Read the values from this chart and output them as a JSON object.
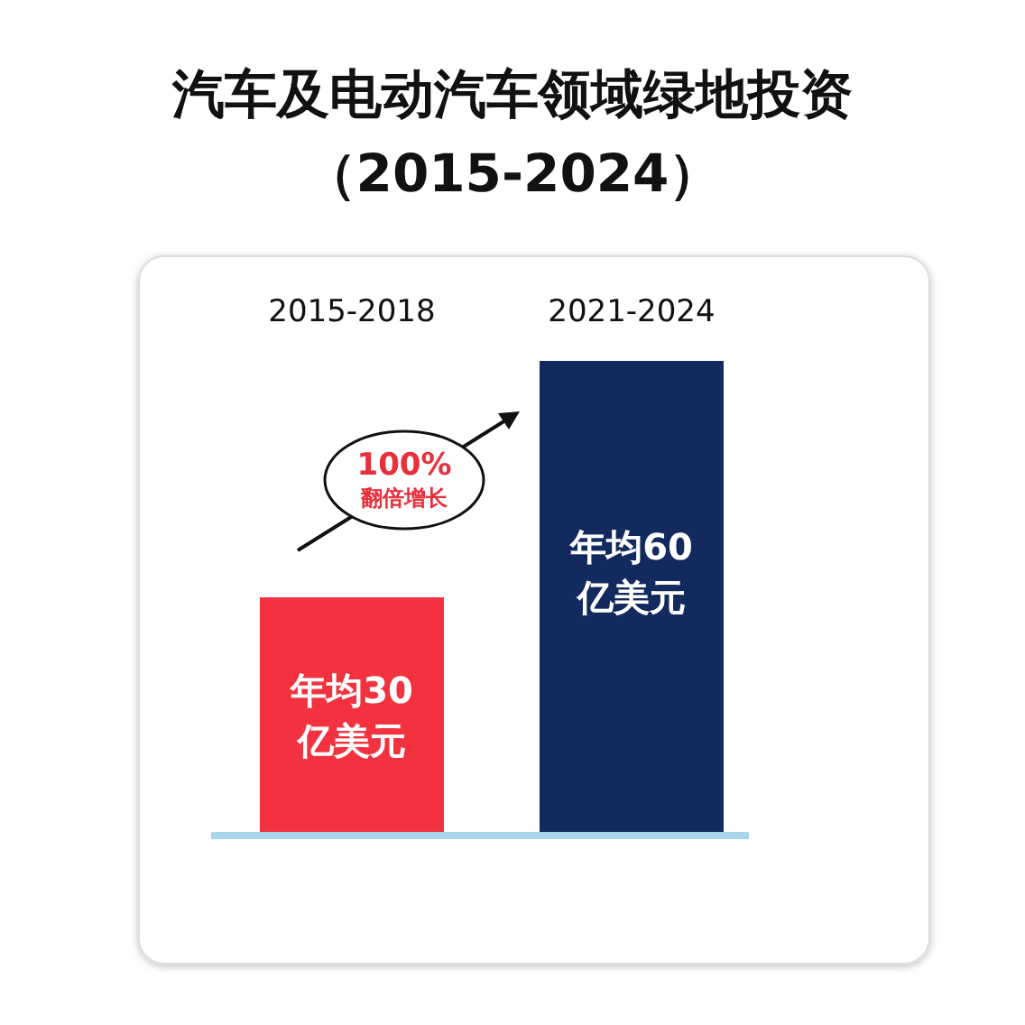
{
  "chart_data": {
    "type": "bar",
    "title": "汽车及电动汽车领域绿地投资（2015-2024）",
    "categories": [
      "2015-2018",
      "2021-2024"
    ],
    "values": [
      30,
      60
    ],
    "colors": [
      "#f2333f",
      "#132a5e"
    ],
    "value_labels": [
      "年均30\n亿美元",
      "年均60\n亿美元"
    ],
    "annotations": [
      "100%",
      "翻倍增长"
    ]
  }
}
